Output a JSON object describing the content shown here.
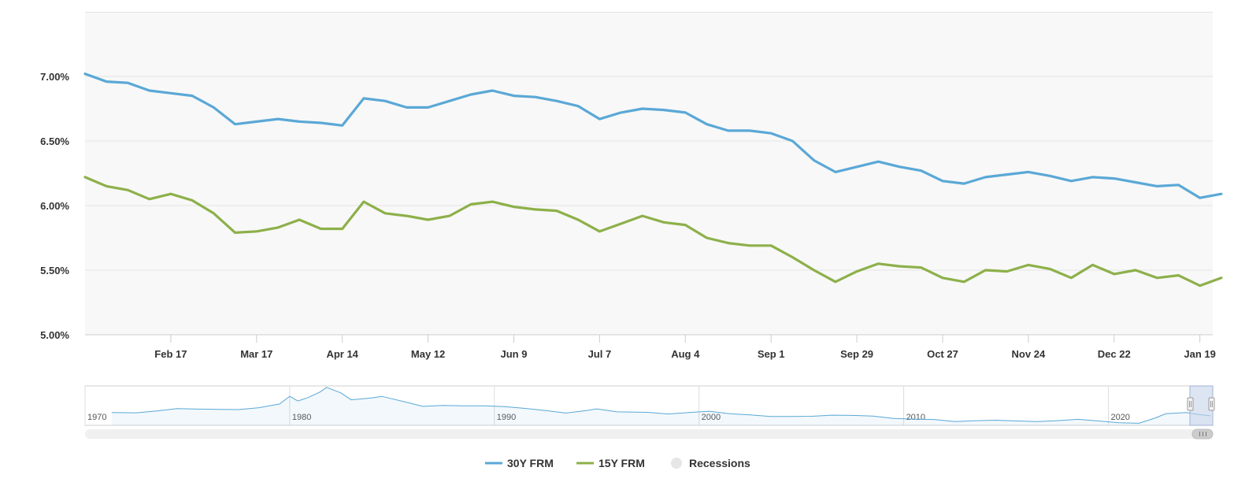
{
  "colors": {
    "series_30y": "#5aa8d6",
    "series_15y": "#8db04a",
    "recession": "#e6e6e6",
    "plot_bg": "#f8f8f8",
    "grid": "#e4e4e4"
  },
  "chart_data": {
    "type": "line",
    "title": "",
    "xlabel": "",
    "ylabel": "",
    "ylim": [
      5.0,
      7.5
    ],
    "y_ticks": [
      5.0,
      5.5,
      6.0,
      6.5,
      7.0
    ],
    "y_tick_labels": [
      "5.00%",
      "5.50%",
      "6.00%",
      "6.50%",
      "7.00%"
    ],
    "x_start_week_index": 0,
    "x_end_week_index": 52.6,
    "x_ticks": [
      {
        "label": "Feb 17",
        "week": 4
      },
      {
        "label": "Mar 17",
        "week": 8
      },
      {
        "label": "Apr 14",
        "week": 12
      },
      {
        "label": "May 12",
        "week": 16
      },
      {
        "label": "Jun 9",
        "week": 20
      },
      {
        "label": "Jul 7",
        "week": 24
      },
      {
        "label": "Aug 4",
        "week": 28
      },
      {
        "label": "Sep 1",
        "week": 32
      },
      {
        "label": "Sep 29",
        "week": 36
      },
      {
        "label": "Oct 27",
        "week": 40
      },
      {
        "label": "Nov 24",
        "week": 44
      },
      {
        "label": "Dec 22",
        "week": 48
      },
      {
        "label": "Jan 19",
        "week": 52
      }
    ],
    "series": [
      {
        "name": "30Y FRM",
        "values": [
          7.02,
          6.96,
          6.95,
          6.89,
          6.87,
          6.85,
          6.76,
          6.63,
          6.65,
          6.67,
          6.65,
          6.64,
          6.62,
          6.83,
          6.81,
          6.76,
          6.76,
          6.81,
          6.86,
          6.89,
          6.85,
          6.84,
          6.81,
          6.77,
          6.67,
          6.72,
          6.75,
          6.74,
          6.72,
          6.63,
          6.58,
          6.58,
          6.56,
          6.5,
          6.35,
          6.26,
          6.3,
          6.34,
          6.3,
          6.27,
          6.19,
          6.17,
          6.22,
          6.24,
          6.26,
          6.23,
          6.19,
          6.22,
          6.21,
          6.18,
          6.15,
          6.16,
          6.06,
          6.09
        ]
      },
      {
        "name": "15Y FRM",
        "values": [
          6.22,
          6.15,
          6.12,
          6.05,
          6.09,
          6.04,
          5.94,
          5.79,
          5.8,
          5.83,
          5.89,
          5.82,
          5.82,
          6.03,
          5.94,
          5.92,
          5.89,
          5.92,
          6.01,
          6.03,
          5.99,
          5.97,
          5.96,
          5.89,
          5.8,
          5.86,
          5.92,
          5.87,
          5.85,
          5.75,
          5.71,
          5.69,
          5.69,
          5.6,
          5.5,
          5.41,
          5.49,
          5.55,
          5.53,
          5.52,
          5.44,
          5.41,
          5.5,
          5.49,
          5.54,
          5.51,
          5.44,
          5.54,
          5.47,
          5.5,
          5.44,
          5.46,
          5.38,
          5.44
        ]
      }
    ],
    "navigator": {
      "start_year": 1970,
      "end_year": 2025.1,
      "year_labels": [
        {
          "label": "1970",
          "year": 1970
        },
        {
          "label": "1980",
          "year": 1980
        },
        {
          "label": "1990",
          "year": 1990
        },
        {
          "label": "2000",
          "year": 2000
        },
        {
          "label": "2010",
          "year": 2010
        },
        {
          "label": "2020",
          "year": 2020
        }
      ],
      "ylim": [
        2.0,
        19.0
      ],
      "history_30y": [
        {
          "year": 1971.3,
          "value": 7.5
        },
        {
          "year": 1972.5,
          "value": 7.4
        },
        {
          "year": 1973.5,
          "value": 8.2
        },
        {
          "year": 1974.5,
          "value": 9.2
        },
        {
          "year": 1975.5,
          "value": 9.0
        },
        {
          "year": 1976.5,
          "value": 8.9
        },
        {
          "year": 1977.5,
          "value": 8.8
        },
        {
          "year": 1978.5,
          "value": 9.6
        },
        {
          "year": 1979.5,
          "value": 11.2
        },
        {
          "year": 1980.0,
          "value": 14.5
        },
        {
          "year": 1980.4,
          "value": 12.5
        },
        {
          "year": 1980.9,
          "value": 14.0
        },
        {
          "year": 1981.5,
          "value": 16.5
        },
        {
          "year": 1981.8,
          "value": 18.4
        },
        {
          "year": 1982.5,
          "value": 16.0
        },
        {
          "year": 1983.0,
          "value": 13.0
        },
        {
          "year": 1984.0,
          "value": 13.8
        },
        {
          "year": 1984.5,
          "value": 14.5
        },
        {
          "year": 1985.5,
          "value": 12.4
        },
        {
          "year": 1986.5,
          "value": 10.2
        },
        {
          "year": 1987.5,
          "value": 10.6
        },
        {
          "year": 1988.5,
          "value": 10.4
        },
        {
          "year": 1989.5,
          "value": 10.4
        },
        {
          "year": 1990.5,
          "value": 10.1
        },
        {
          "year": 1991.5,
          "value": 9.3
        },
        {
          "year": 1992.5,
          "value": 8.4
        },
        {
          "year": 1993.5,
          "value": 7.3
        },
        {
          "year": 1994.5,
          "value": 8.4
        },
        {
          "year": 1995.0,
          "value": 9.1
        },
        {
          "year": 1996.0,
          "value": 7.8
        },
        {
          "year": 1997.5,
          "value": 7.6
        },
        {
          "year": 1998.5,
          "value": 6.9
        },
        {
          "year": 1999.5,
          "value": 7.5
        },
        {
          "year": 2000.5,
          "value": 8.1
        },
        {
          "year": 2001.5,
          "value": 7.0
        },
        {
          "year": 2002.5,
          "value": 6.5
        },
        {
          "year": 2003.5,
          "value": 5.8
        },
        {
          "year": 2004.5,
          "value": 5.8
        },
        {
          "year": 2005.5,
          "value": 5.9
        },
        {
          "year": 2006.5,
          "value": 6.4
        },
        {
          "year": 2007.5,
          "value": 6.3
        },
        {
          "year": 2008.5,
          "value": 6.0
        },
        {
          "year": 2009.5,
          "value": 5.0
        },
        {
          "year": 2010.5,
          "value": 4.7
        },
        {
          "year": 2011.5,
          "value": 4.5
        },
        {
          "year": 2012.5,
          "value": 3.6
        },
        {
          "year": 2013.5,
          "value": 4.0
        },
        {
          "year": 2014.5,
          "value": 4.2
        },
        {
          "year": 2015.5,
          "value": 3.9
        },
        {
          "year": 2016.5,
          "value": 3.6
        },
        {
          "year": 2017.5,
          "value": 4.0
        },
        {
          "year": 2018.5,
          "value": 4.6
        },
        {
          "year": 2019.5,
          "value": 3.9
        },
        {
          "year": 2020.5,
          "value": 3.1
        },
        {
          "year": 2021.5,
          "value": 2.9
        },
        {
          "year": 2022.3,
          "value": 5.2
        },
        {
          "year": 2022.8,
          "value": 7.0
        },
        {
          "year": 2023.8,
          "value": 7.5
        },
        {
          "year": 2024.5,
          "value": 6.6
        },
        {
          "year": 2025.0,
          "value": 6.1
        }
      ]
    }
  },
  "legend": [
    {
      "name": "30Y FRM",
      "color": "#5aa8d6"
    },
    {
      "name": "15Y FRM",
      "color": "#8db04a"
    },
    {
      "name": "Recessions",
      "color": "#e6e6e6"
    }
  ],
  "navigator_scroll_icon": "grip-icon"
}
